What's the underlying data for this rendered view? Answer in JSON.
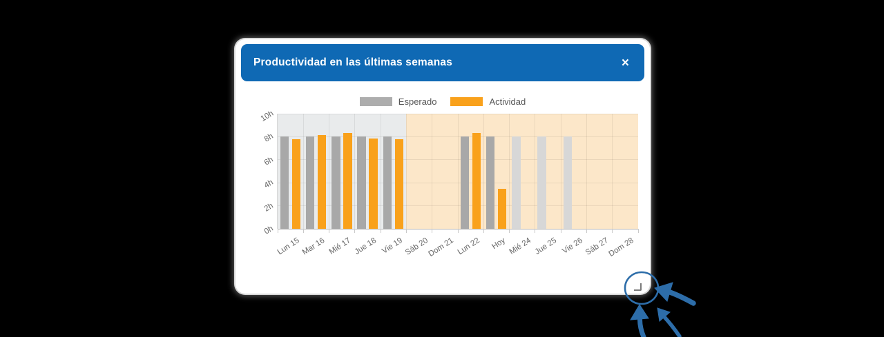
{
  "modal": {
    "title": "Productividad en las últimas semanas",
    "close_label": "×"
  },
  "legend": {
    "items": [
      {
        "label": "Esperado",
        "color": "#adadad"
      },
      {
        "label": "Actividad",
        "color": "#f9a11b"
      }
    ]
  },
  "chart_data": {
    "type": "bar",
    "title": "Productividad en las últimas semanas",
    "categories": [
      "Lun 15",
      "Mar 16",
      "Mié 17",
      "Jue 18",
      "Vie 19",
      "Sáb 20",
      "Dom 21",
      "Lun 22",
      "Hoy",
      "Mié 24",
      "Jue 25",
      "Vie 26",
      "Sáb 27",
      "Dom 28"
    ],
    "series": [
      {
        "name": "Esperado",
        "color": "#a8a8a8",
        "future_color": "#d7d7d7",
        "values": [
          8,
          8,
          8,
          8,
          8,
          null,
          null,
          8,
          8,
          8,
          8,
          8,
          null,
          null
        ]
      },
      {
        "name": "Actividad",
        "color": "#f9a11b",
        "values": [
          7.8,
          8.15,
          8.3,
          7.85,
          7.8,
          null,
          null,
          8.3,
          3.5,
          null,
          null,
          null,
          null,
          null
        ]
      }
    ],
    "future_from_index": 9,
    "xlabel": "",
    "ylabel": "",
    "unit": "h",
    "yticks": [
      "0h",
      "2h",
      "4h",
      "6h",
      "8h",
      "10h"
    ],
    "ylim": [
      0,
      10
    ],
    "grid": true,
    "legend_position": "top",
    "bands": [
      {
        "from": 0,
        "to": 5,
        "color": "#e9ebec"
      },
      {
        "from": 5,
        "to": 14,
        "color": "#fce7c9"
      }
    ]
  },
  "colors": {
    "header_bg": "#0f69b4",
    "card_bg": "#ffffff",
    "background": "#000000",
    "annotation_blue": "#2d6da9",
    "axis_text": "#666666"
  }
}
